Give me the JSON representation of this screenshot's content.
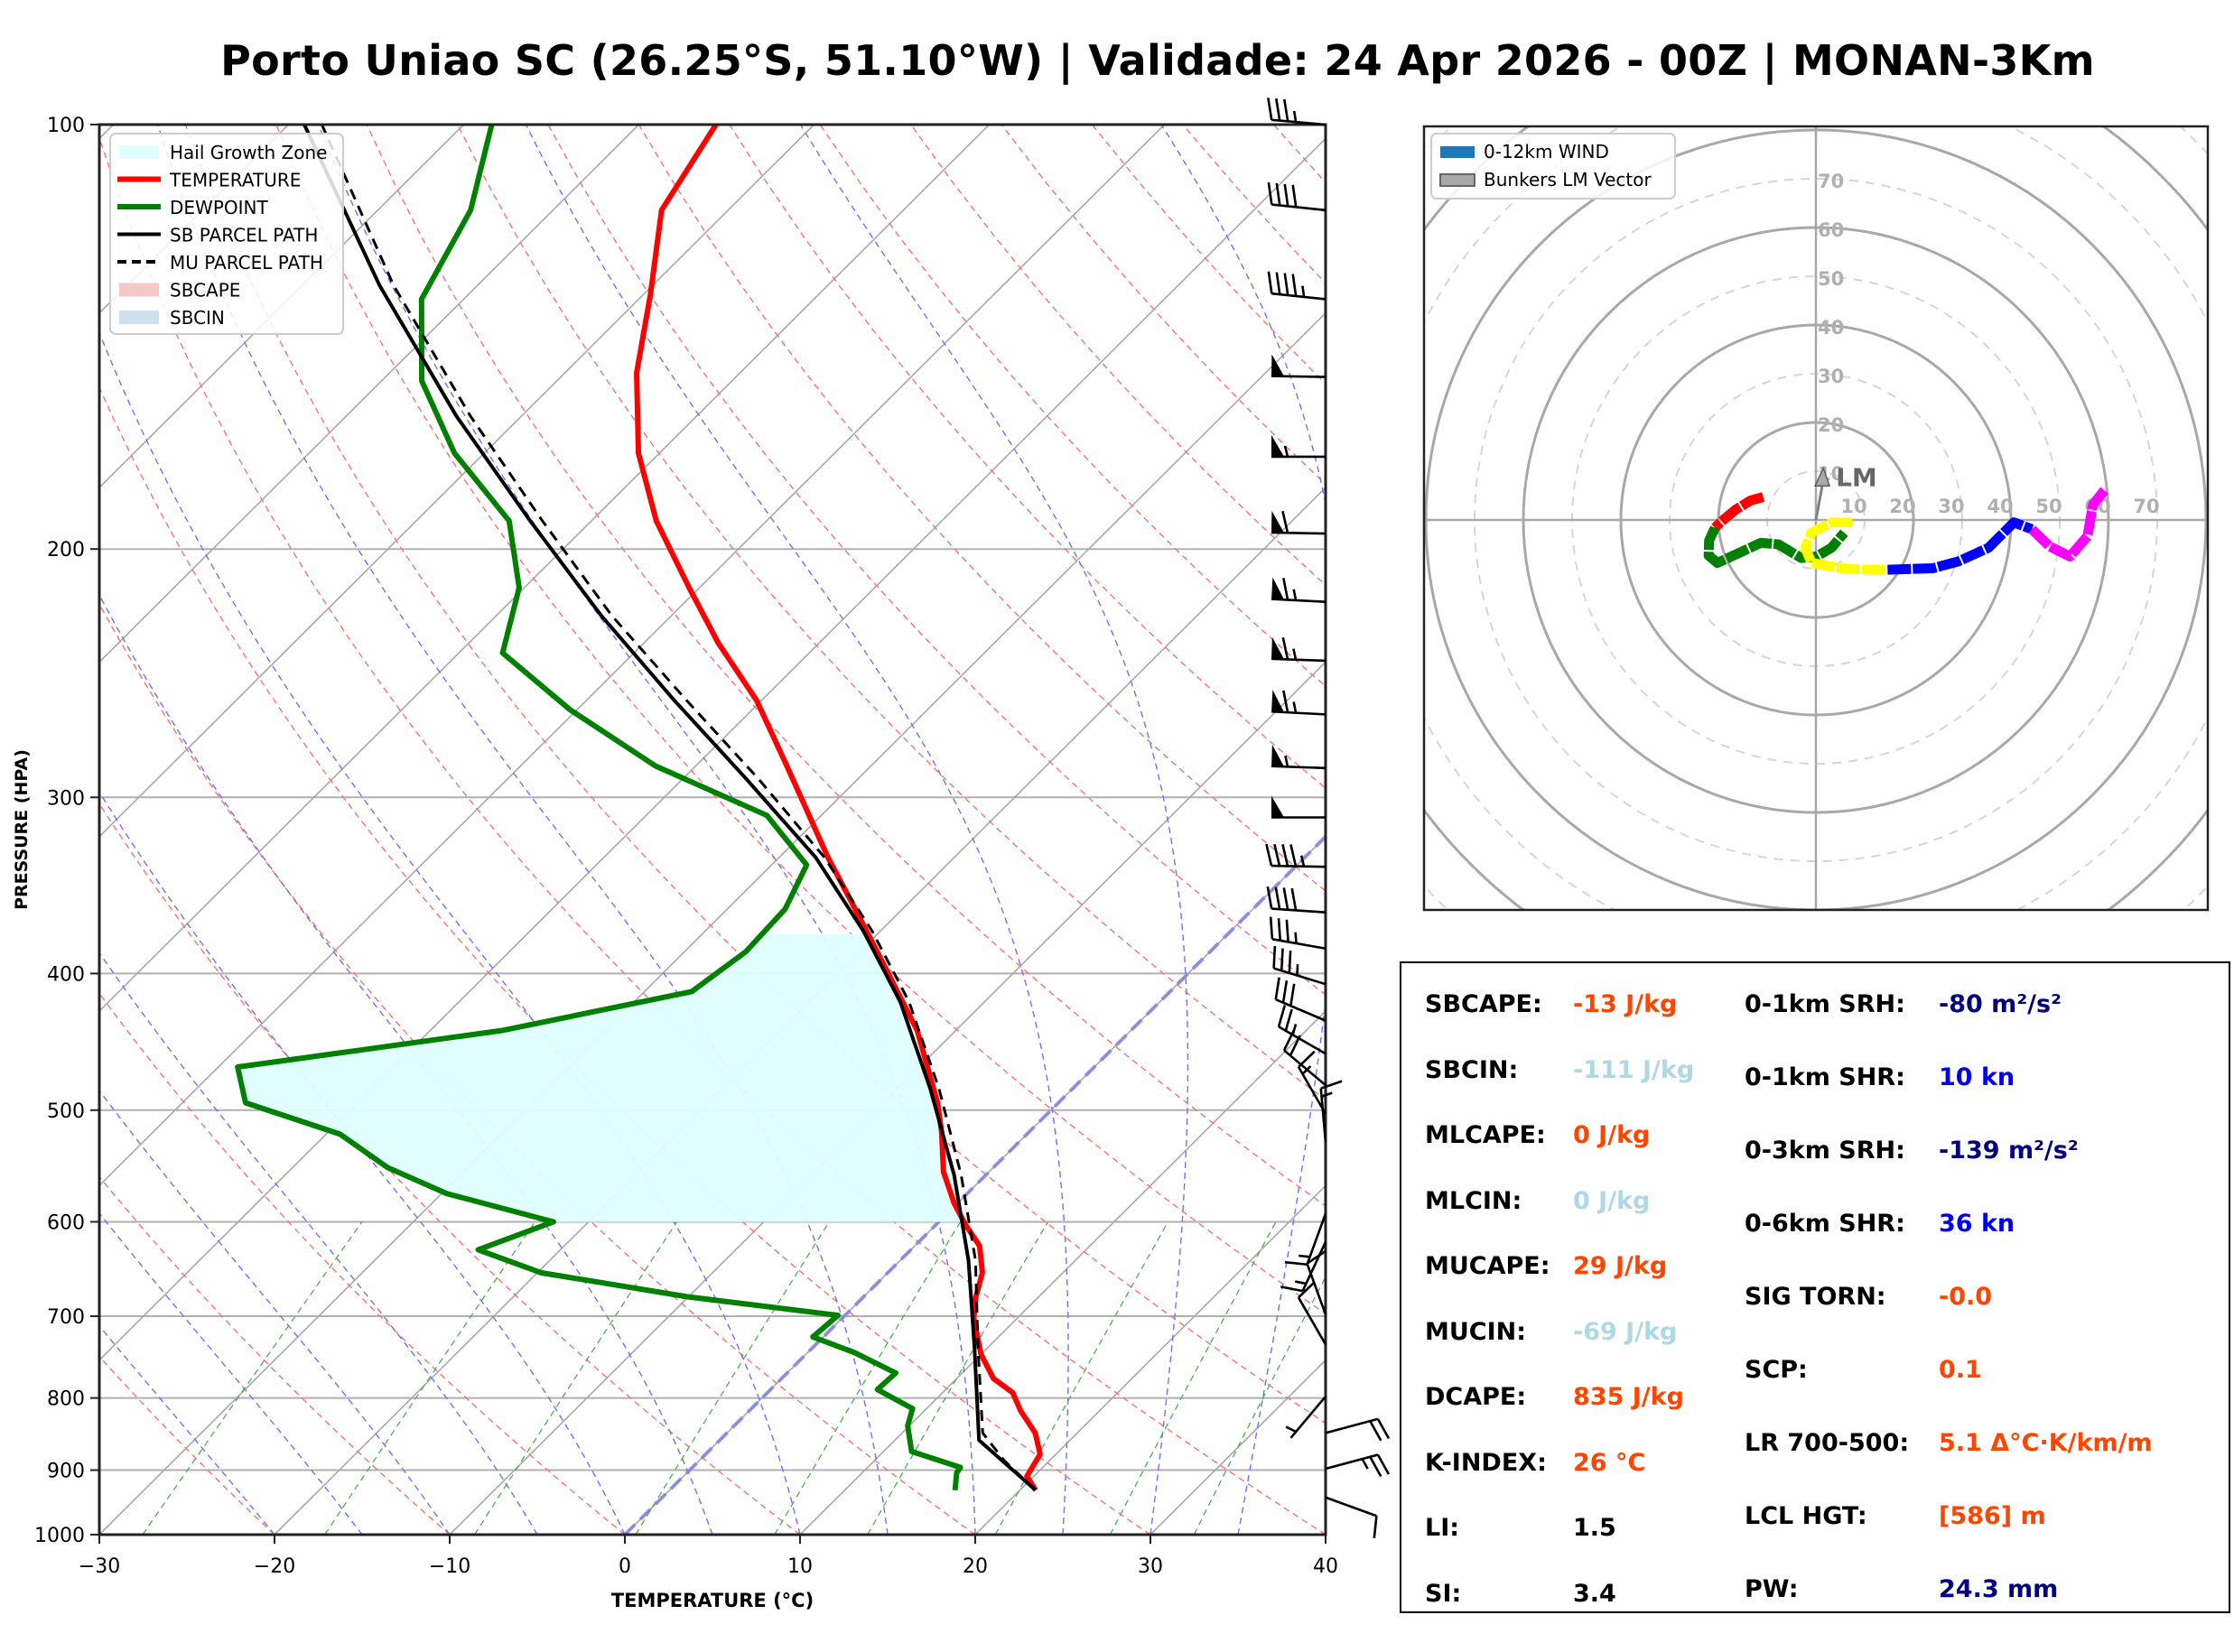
{
  "title": "Porto Uniao SC (26.25°S, 51.10°W) | Validade: 24 Apr 2026 - 00Z | MONAN-3Km",
  "colors": {
    "temperature": "#ff0000",
    "dewpoint": "#008000",
    "parcel": "#000000",
    "hail_zone": "#e0ffff",
    "sbcape": "#f4c7c9",
    "sbcin": "#cfe0ec",
    "value_orange": "#ff4500",
    "value_lightblue": "#add8e6",
    "value_navy": "#000080",
    "value_blue": "#0000ee",
    "value_black": "#000000"
  },
  "chart_data": [
    {
      "type": "line",
      "name": "skewt",
      "title": "",
      "xlabel": "TEMPERATURE (°C)",
      "ylabel": "PRESSURE (HPA)",
      "xlim": [
        -30,
        40
      ],
      "ylim": [
        1000,
        100
      ],
      "yscale": "log",
      "skew_per_decade_c": 80.8,
      "x_ticks": [
        -30,
        -20,
        -10,
        0,
        10,
        20,
        30,
        40
      ],
      "x_tick_labels": [
        "−30",
        "−20",
        "−10",
        "0",
        "10",
        "20",
        "30",
        "40"
      ],
      "y_ticks": [
        1000,
        900,
        800,
        700,
        600,
        500,
        400,
        300,
        200,
        100
      ],
      "y_tick_labels": [
        "1000",
        "900",
        "800",
        "700",
        "600",
        "500",
        "400",
        "300",
        "200",
        "100"
      ],
      "legend_position": "top-left",
      "legend": [
        {
          "label": "Hail Growth Zone",
          "kind": "patch",
          "color": "#e0ffff"
        },
        {
          "label": "TEMPERATURE",
          "kind": "line",
          "color": "#ff0000"
        },
        {
          "label": "DEWPOINT",
          "kind": "line",
          "color": "#008000"
        },
        {
          "label": "SB PARCEL PATH",
          "kind": "line",
          "color": "#000000"
        },
        {
          "label": "MU PARCEL PATH",
          "kind": "dashed",
          "color": "#000000"
        },
        {
          "label": "SBCAPE",
          "kind": "patch",
          "color": "#f4c7c9"
        },
        {
          "label": "SBCIN",
          "kind": "patch",
          "color": "#cfe0ec"
        }
      ],
      "series": [
        {
          "name": "TEMPERATURE",
          "pressure": [
            930,
            909,
            877,
            847,
            817,
            793,
            775,
            745,
            702,
            678,
            652,
            624,
            603,
            582,
            553,
            518,
            494,
            439,
            386,
            356,
            331,
            285,
            256,
            233,
            213,
            191,
            171,
            150,
            132,
            115,
            100
          ],
          "temperature": [
            20.9,
            19.6,
            19.1,
            17.6,
            15.5,
            14.0,
            12.1,
            10.0,
            7.5,
            6.4,
            5.4,
            3.7,
            1.7,
            -0.2,
            -2.6,
            -5.0,
            -6.9,
            -12.2,
            -19.0,
            -23.3,
            -27.2,
            -34.8,
            -40.3,
            -45.8,
            -50.6,
            -56.3,
            -61.2,
            -65.9,
            -69.6,
            -73.8,
            -75.6
          ]
        },
        {
          "name": "DEWPOINT",
          "pressure": [
            930,
            904,
            896,
            873,
            837,
            814,
            789,
            768,
            743,
            724,
            699,
            678,
            652,
            628,
            600,
            573,
            549,
            520,
            494,
            466,
            439,
            412,
            386,
            360,
            335,
            309,
            285,
            260,
            237,
            213,
            191,
            171,
            152,
            133,
            115,
            100
          ],
          "temperature": [
            16.3,
            15.4,
            15.3,
            11.6,
            9.9,
            9.2,
            6.1,
            6.2,
            2.7,
            -0.6,
            -0.4,
            -10.1,
            -19.8,
            -24.7,
            -22.0,
            -29.7,
            -34.6,
            -39.2,
            -46.4,
            -48.9,
            -35.9,
            -27.3,
            -26.5,
            -26.7,
            -28.0,
            -33.1,
            -42.3,
            -50.4,
            -57.5,
            -60.3,
            -64.7,
            -71.7,
            -77.7,
            -82.4,
            -84.7,
            -88.4
          ]
        },
        {
          "name": "SB PARCEL PATH",
          "pressure": [
            930,
            857,
            736,
            639,
            556,
            483,
            419,
            373,
            331,
            291,
            256,
            223,
            191,
            161,
            130,
            100
          ],
          "temperature": [
            20.9,
            14.8,
            9.2,
            3.9,
            -1.8,
            -8.1,
            -14.8,
            -21.0,
            -27.9,
            -36.4,
            -45.0,
            -54.0,
            -63.5,
            -73.7,
            -85.6,
            -99.1
          ]
        },
        {
          "name": "MU PARCEL PATH",
          "pressure": [
            930,
            886,
            847,
            736,
            639,
            556,
            483,
            419,
            373,
            331,
            291,
            256,
            223,
            191,
            161,
            130,
            100
          ],
          "temperature": [
            20.9,
            17.4,
            14.6,
            9.4,
            4.3,
            -1.4,
            -7.6,
            -14.3,
            -20.5,
            -27.4,
            -35.7,
            -44.3,
            -53.4,
            -62.8,
            -72.9,
            -84.8,
            -98.1
          ]
        }
      ],
      "hail_growth_zone_hpa": [
        600,
        375
      ],
      "wind_barbs": [
        {
          "pressure": 100,
          "direction": 275,
          "speed": 35
        },
        {
          "pressure": 115,
          "direction": 276,
          "speed": 40
        },
        {
          "pressure": 133,
          "direction": 276,
          "speed": 45
        },
        {
          "pressure": 151,
          "direction": 271,
          "speed": 50
        },
        {
          "pressure": 172,
          "direction": 270,
          "speed": 55
        },
        {
          "pressure": 195,
          "direction": 271,
          "speed": 60
        },
        {
          "pressure": 218,
          "direction": 273,
          "speed": 65
        },
        {
          "pressure": 240,
          "direction": 272,
          "speed": 65
        },
        {
          "pressure": 262,
          "direction": 273,
          "speed": 65
        },
        {
          "pressure": 286,
          "direction": 272,
          "speed": 55
        },
        {
          "pressure": 310,
          "direction": 270,
          "speed": 50
        },
        {
          "pressure": 336,
          "direction": 271,
          "speed": 45
        },
        {
          "pressure": 362,
          "direction": 274,
          "speed": 40
        },
        {
          "pressure": 384,
          "direction": 280,
          "speed": 35
        },
        {
          "pressure": 407,
          "direction": 287,
          "speed": 35
        },
        {
          "pressure": 432,
          "direction": 293,
          "speed": 30
        },
        {
          "pressure": 456,
          "direction": 300,
          "speed": 25
        },
        {
          "pressure": 480,
          "direction": 310,
          "speed": 20
        },
        {
          "pressure": 503,
          "direction": 330,
          "speed": 15
        },
        {
          "pressure": 527,
          "direction": 355,
          "speed": 15
        },
        {
          "pressure": 592,
          "direction": 200,
          "speed": 15
        },
        {
          "pressure": 620,
          "direction": 205,
          "speed": 15
        },
        {
          "pressure": 698,
          "direction": 340,
          "speed": 10
        },
        {
          "pressure": 733,
          "direction": 330,
          "speed": 10
        },
        {
          "pressure": 798,
          "direction": 220,
          "speed": 5
        },
        {
          "pressure": 847,
          "direction": 75,
          "speed": 20
        },
        {
          "pressure": 898,
          "direction": 75,
          "speed": 25
        },
        {
          "pressure": 941,
          "direction": 110,
          "speed": 10
        }
      ]
    },
    {
      "type": "line",
      "name": "hodograph",
      "title": "",
      "rings_kn": [
        10,
        20,
        30,
        40,
        50,
        60,
        70
      ],
      "ring_labels": [
        "10",
        "20",
        "30",
        "40",
        "50",
        "60",
        "70"
      ],
      "xlim": [
        -80,
        80
      ],
      "ylim": [
        -80,
        80
      ],
      "legend_position": "top-left",
      "legend": [
        {
          "label": "0-12km WIND",
          "color": "#1f77b4"
        },
        {
          "label": "Bunkers LM Vector",
          "color": "#a9a9a9"
        }
      ],
      "lm_label": "LM",
      "lm_vector": {
        "u": 1.5,
        "v": 8.1
      },
      "segments": [
        {
          "color": "#ff0000",
          "u": [
            -10.8,
            -13.4,
            -16.5,
            -19.6,
            -20.7
          ],
          "v": [
            4.7,
            4.0,
            2.1,
            -0.5,
            -1.6
          ]
        },
        {
          "color": "#008000",
          "u": [
            -20.7,
            -21.9,
            -22.0,
            -20.2,
            -16.5,
            -11.3,
            -7.7,
            -3.0,
            0.1,
            3.2,
            5.8
          ],
          "v": [
            -1.6,
            -4.2,
            -7.3,
            -8.8,
            -7.1,
            -4.7,
            -5.0,
            -7.8,
            -7.5,
            -5.7,
            -2.6
          ]
        },
        {
          "color": "#ffff00",
          "u": [
            7.4,
            3.2,
            -0.9,
            -2.2,
            -0.9,
            5.3,
            10.5,
            14.7
          ],
          "v": [
            -0.5,
            -0.5,
            -2.6,
            -5.7,
            -8.8,
            -9.9,
            -10.2,
            -10.2
          ]
        },
        {
          "color": "#0000ff",
          "u": [
            14.7,
            24.0,
            29.2,
            35.4,
            40.6,
            44.3
          ],
          "v": [
            -10.2,
            -9.9,
            -8.5,
            -5.7,
            -0.5,
            -1.9
          ]
        },
        {
          "color": "#ff00ff",
          "u": [
            44.3,
            47.9,
            52.1,
            55.7,
            56.8,
            59.4
          ],
          "v": [
            -1.9,
            -5.4,
            -7.5,
            -3.3,
            3.1,
            6.4
          ]
        }
      ]
    }
  ],
  "stats": {
    "left": [
      {
        "label": "SBCAPE:",
        "value": "-13 J/kg",
        "color": "value_orange"
      },
      {
        "label": "SBCIN:",
        "value": "-111 J/kg",
        "color": "value_lightblue"
      },
      {
        "label": "MLCAPE:",
        "value": "0 J/kg",
        "color": "value_orange"
      },
      {
        "label": "MLCIN:",
        "value": "0 J/kg",
        "color": "value_lightblue"
      },
      {
        "label": "MUCAPE:",
        "value": "29 J/kg",
        "color": "value_orange"
      },
      {
        "label": "MUCIN:",
        "value": "-69 J/kg",
        "color": "value_lightblue"
      },
      {
        "label": "DCAPE:",
        "value": "835 J/kg",
        "color": "value_orange"
      },
      {
        "label": "K-INDEX:",
        "value": "26 °C",
        "color": "value_orange"
      },
      {
        "label": "LI:",
        "value": "1.5",
        "color": "value_black"
      },
      {
        "label": "SI:",
        "value": "3.4",
        "color": "value_black"
      }
    ],
    "right": [
      {
        "label": "0-1km SRH:",
        "value": "-80 m²/s²",
        "color": "value_navy"
      },
      {
        "label": "0-1km SHR:",
        "value": "10 kn",
        "color": "value_blue"
      },
      {
        "label": "0-3km SRH:",
        "value": "-139 m²/s²",
        "color": "value_navy"
      },
      {
        "label": "0-6km SHR:",
        "value": "36 kn",
        "color": "value_blue"
      },
      {
        "label": "SIG TORN:",
        "value": "-0.0",
        "color": "value_orange"
      },
      {
        "label": "SCP:",
        "value": "0.1",
        "color": "value_orange"
      },
      {
        "label": "LR 700-500:",
        "value": "5.1 Δ°C·K/km/m",
        "color": "value_orange"
      },
      {
        "label": "LCL HGT:",
        "value": "[586] m",
        "color": "value_orange"
      },
      {
        "label": "PW:",
        "value": "24.3 mm",
        "color": "value_navy"
      }
    ]
  }
}
